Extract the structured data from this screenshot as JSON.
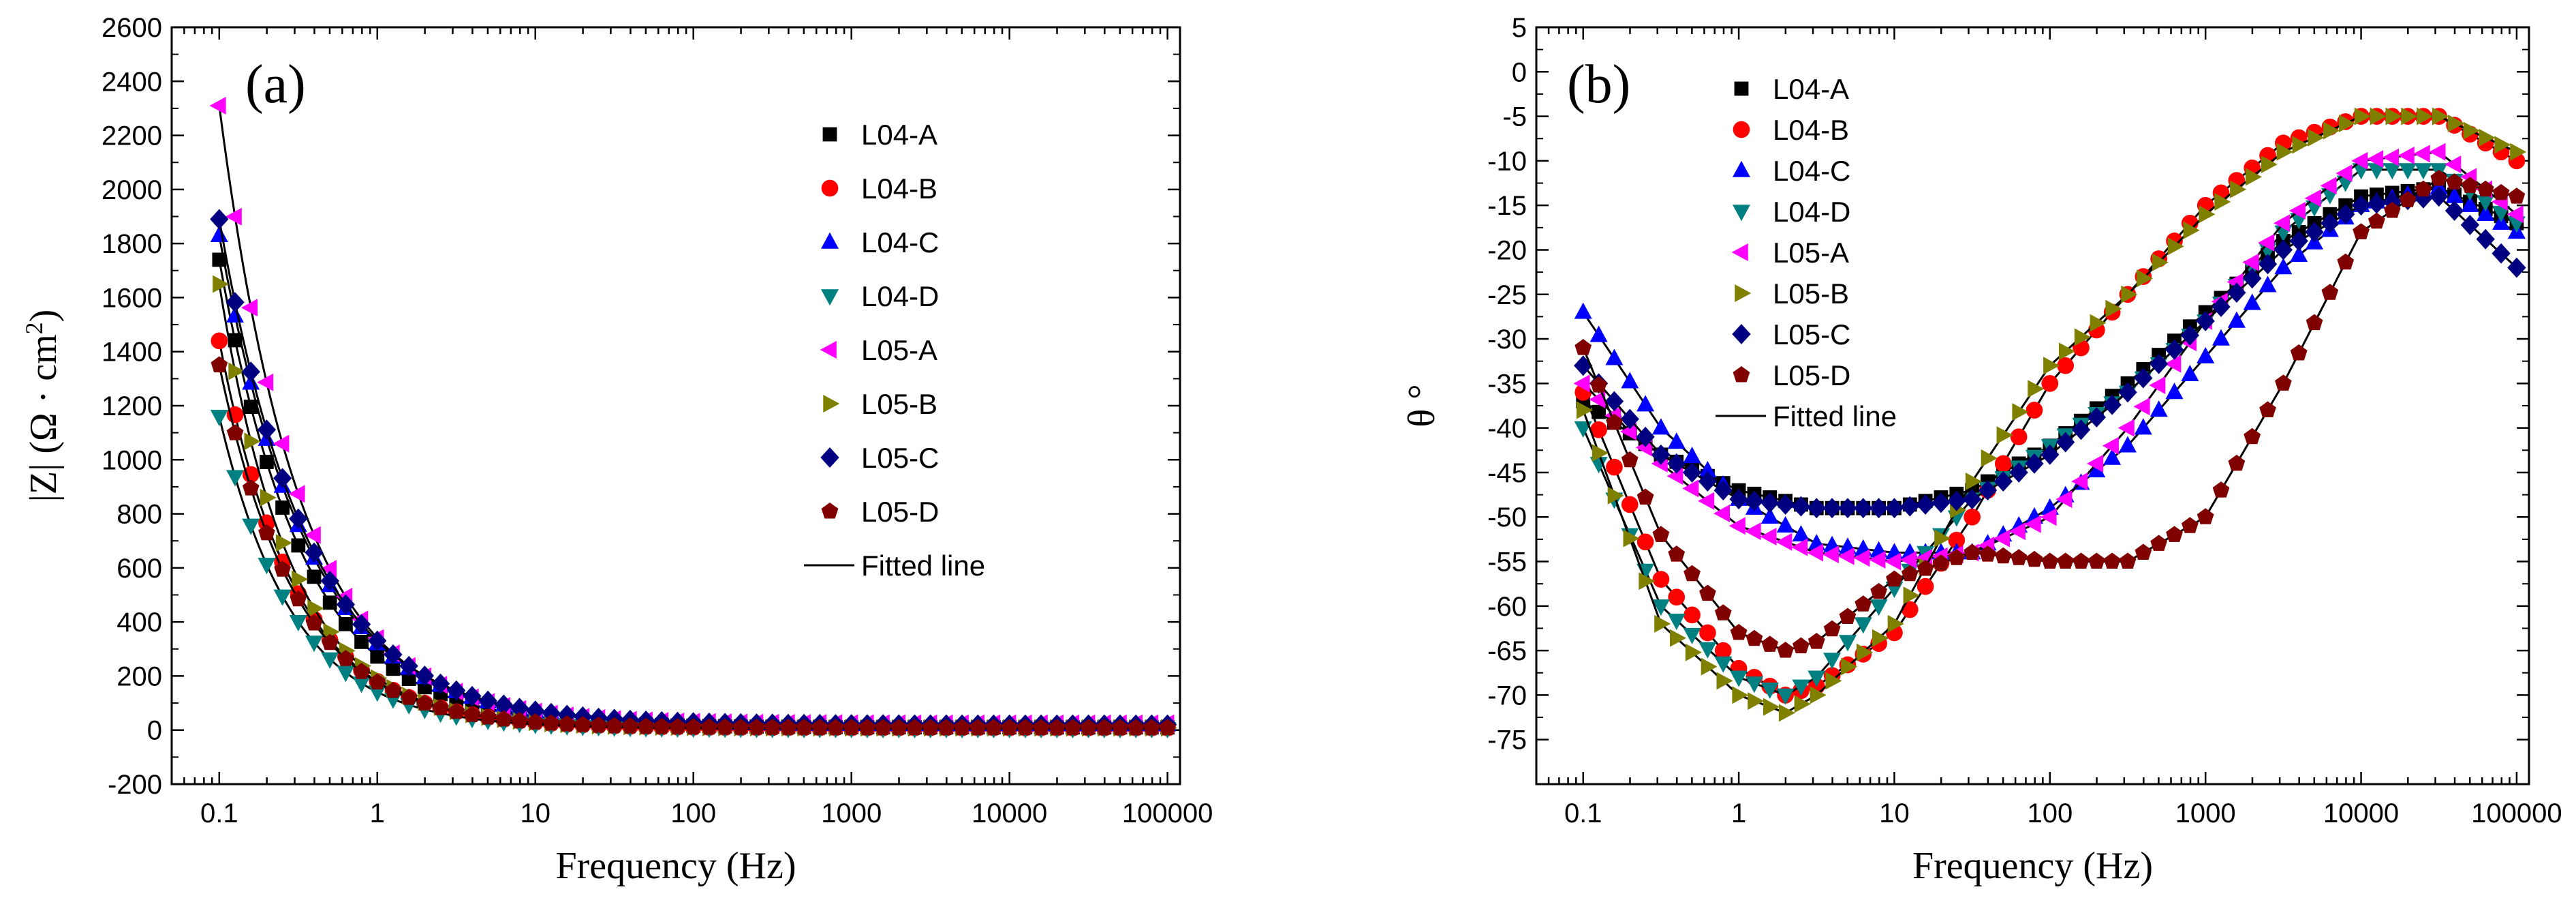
{
  "figure": {
    "panels": [
      "a",
      "b"
    ]
  },
  "chart_data": [
    {
      "type": "scatter",
      "panel_label": "(a)",
      "title": "",
      "xlabel": "Frequency (Hz)",
      "ylabel_parts": [
        "|Z| (Ω · cm",
        "2",
        ")"
      ],
      "x_scale": "log",
      "xlim": [
        0.05,
        120000
      ],
      "ylim": [
        -200,
        2600
      ],
      "x_ticks": [
        0.1,
        1,
        10,
        100,
        1000,
        10000,
        100000
      ],
      "x_tick_labels": [
        "0.1",
        "1",
        "10",
        "100",
        "1000",
        "10000",
        "100000"
      ],
      "y_ticks": [
        -200,
        0,
        200,
        400,
        600,
        800,
        1000,
        1200,
        1400,
        1600,
        1800,
        2000,
        2200,
        2400,
        2600
      ],
      "y_tick_labels": [
        "-200",
        "0",
        "200",
        "400",
        "600",
        "800",
        "1000",
        "1200",
        "1400",
        "1600",
        "1800",
        "2000",
        "2200",
        "2400",
        "2600"
      ],
      "legend_position": "top-right",
      "fitted_line_label": "Fitted line",
      "fitted_line_color": "#000000",
      "grid": false,
      "model": "|Z| ≈ c0 + A · f^(-k)",
      "series": [
        {
          "name": "L04-A",
          "marker": "square",
          "color": "#000000",
          "z_at_0_1Hz": 1740,
          "slope_k": 0.82,
          "z_high_freq": 10
        },
        {
          "name": "L04-B",
          "marker": "circle",
          "color": "#ff0000",
          "z_at_0_1Hz": 1440,
          "slope_k": 0.92,
          "z_high_freq": 8
        },
        {
          "name": "L04-C",
          "marker": "triangle-up",
          "color": "#0000ff",
          "z_at_0_1Hz": 1830,
          "slope_k": 0.78,
          "z_high_freq": 20
        },
        {
          "name": "L04-D",
          "marker": "triangle-down",
          "color": "#008080",
          "z_at_0_1Hz": 1160,
          "slope_k": 0.93,
          "z_high_freq": 5
        },
        {
          "name": "L05-A",
          "marker": "triangle-left",
          "color": "#ff00ff",
          "z_at_0_1Hz": 2310,
          "slope_k": 0.86,
          "z_high_freq": 25
        },
        {
          "name": "L05-B",
          "marker": "triangle-right",
          "color": "#808000",
          "z_at_0_1Hz": 1650,
          "slope_k": 0.95,
          "z_high_freq": 8
        },
        {
          "name": "L05-C",
          "marker": "diamond",
          "color": "#000080",
          "z_at_0_1Hz": 1890,
          "slope_k": 0.78,
          "z_high_freq": 20
        },
        {
          "name": "L05-D",
          "marker": "pentagon",
          "color": "#800000",
          "z_at_0_1Hz": 1350,
          "slope_k": 0.9,
          "z_high_freq": 8
        }
      ]
    },
    {
      "type": "scatter",
      "panel_label": "(b)",
      "title": "",
      "xlabel": "Frequency (Hz)",
      "ylabel": "θ °",
      "x_scale": "log",
      "xlim": [
        0.05,
        120000
      ],
      "ylim": [
        -80,
        5
      ],
      "x_ticks": [
        0.1,
        1,
        10,
        100,
        1000,
        10000,
        100000
      ],
      "x_tick_labels": [
        "0.1",
        "1",
        "10",
        "100",
        "1000",
        "10000",
        "100000"
      ],
      "y_ticks": [
        -75,
        -70,
        -65,
        -60,
        -55,
        -50,
        -45,
        -40,
        -35,
        -30,
        -25,
        -20,
        -15,
        -10,
        -5,
        0,
        5
      ],
      "y_tick_labels": [
        "-75",
        "-70",
        "-65",
        "-60",
        "-55",
        "-50",
        "-45",
        "-40",
        "-35",
        "-30",
        "-25",
        "-20",
        "-15",
        "-10",
        "-5",
        "0",
        "5"
      ],
      "legend_position": "top-left",
      "fitted_line_label": "Fitted line",
      "fitted_line_color": "#000000",
      "grid": false,
      "series": [
        {
          "name": "L04-A",
          "marker": "square",
          "color": "#000000",
          "curve_log10f": [
            -1,
            -0.5,
            0,
            0.5,
            1,
            1.5,
            2,
            2.5,
            3,
            3.5,
            4,
            4.5,
            5
          ],
          "curve_theta": [
            -37,
            -43,
            -47,
            -49,
            -49,
            -47,
            -42,
            -35,
            -27,
            -19,
            -14,
            -13,
            -17
          ]
        },
        {
          "name": "L04-B",
          "marker": "circle",
          "color": "#ff0000",
          "curve_log10f": [
            -1,
            -0.5,
            0,
            0.3,
            0.5,
            1,
            1.5,
            2,
            2.5,
            3,
            3.5,
            4,
            4.5,
            5
          ],
          "curve_theta": [
            -36,
            -57,
            -67,
            -70,
            -69,
            -63,
            -50,
            -35,
            -25,
            -15,
            -8,
            -5,
            -5,
            -10
          ]
        },
        {
          "name": "L04-C",
          "marker": "triangle-up",
          "color": "#0000ff",
          "curve_log10f": [
            -1,
            -0.5,
            0,
            0.5,
            1,
            1.5,
            2,
            2.5,
            3,
            3.5,
            4,
            4.5,
            5
          ],
          "curve_theta": [
            -27,
            -40,
            -48,
            -53,
            -54,
            -54,
            -49,
            -42,
            -32,
            -22,
            -15,
            -13,
            -18
          ]
        },
        {
          "name": "L04-D",
          "marker": "triangle-down",
          "color": "#008080",
          "curve_log10f": [
            -1,
            -0.5,
            0,
            0.3,
            0.5,
            1,
            1.5,
            2,
            2.5,
            3,
            3.5,
            4,
            4.5,
            5
          ],
          "curve_theta": [
            -40,
            -60,
            -68,
            -70,
            -68,
            -58,
            -48,
            -42,
            -36,
            -28,
            -18,
            -11,
            -11,
            -17
          ]
        },
        {
          "name": "L05-A",
          "marker": "triangle-left",
          "color": "#ff00ff",
          "curve_log10f": [
            -1,
            -0.5,
            0,
            0.5,
            1,
            1.5,
            2,
            2.5,
            3,
            3.5,
            4,
            4.5,
            5
          ],
          "curve_theta": [
            -35,
            -44,
            -51,
            -54,
            -55,
            -54,
            -50,
            -40,
            -28,
            -17,
            -10,
            -9,
            -16
          ]
        },
        {
          "name": "L05-B",
          "marker": "triangle-right",
          "color": "#808000",
          "curve_log10f": [
            -1,
            -0.5,
            0,
            0.3,
            0.5,
            1,
            1.5,
            2,
            2.5,
            3,
            3.5,
            4,
            4.5,
            5
          ],
          "curve_theta": [
            -38,
            -62,
            -70,
            -72,
            -70,
            -62,
            -46,
            -33,
            -25,
            -16,
            -9,
            -5,
            -5,
            -9
          ]
        },
        {
          "name": "L05-C",
          "marker": "diamond",
          "color": "#000080",
          "curve_log10f": [
            -1,
            -0.5,
            0,
            0.5,
            1,
            1.5,
            2,
            2.5,
            3,
            3.5,
            4,
            4.5,
            5
          ],
          "curve_theta": [
            -33,
            -43,
            -48,
            -49,
            -49,
            -48,
            -43,
            -36,
            -28,
            -20,
            -15,
            -14,
            -22
          ]
        },
        {
          "name": "L05-D",
          "marker": "pentagon",
          "color": "#800000",
          "curve_log10f": [
            -1,
            -0.5,
            0,
            0.3,
            0.5,
            1,
            1.5,
            2,
            2.5,
            3,
            3.5,
            4,
            4.5,
            5
          ],
          "curve_theta": [
            -31,
            -52,
            -63,
            -65,
            -64,
            -57,
            -54,
            -55,
            -55,
            -50,
            -35,
            -18,
            -12,
            -14
          ]
        }
      ]
    }
  ]
}
